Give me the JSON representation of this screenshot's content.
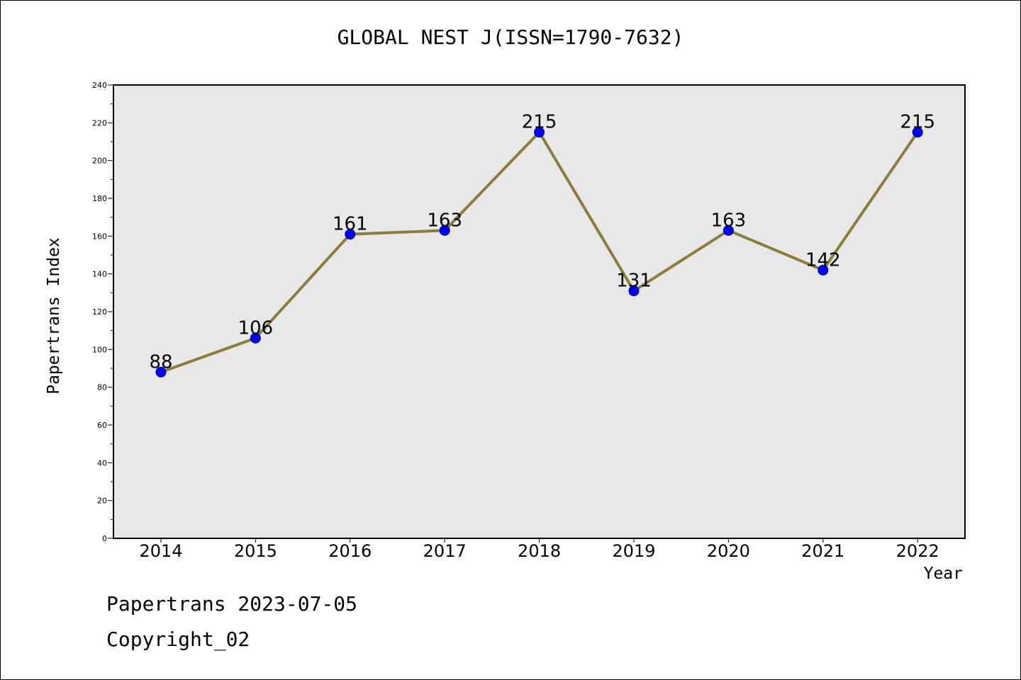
{
  "chart_data": {
    "type": "line",
    "title": "GLOBAL NEST J(ISSN=1790-7632)",
    "xlabel": "Year",
    "ylabel": "Papertrans Index",
    "x": [
      "2014",
      "2015",
      "2016",
      "2017",
      "2018",
      "2019",
      "2020",
      "2021",
      "2022"
    ],
    "series": [
      {
        "values": [
          88,
          106,
          161,
          163,
          215,
          131,
          163,
          142,
          215
        ]
      }
    ],
    "ylim": [
      0,
      240
    ],
    "yticks": [
      0,
      20,
      40,
      60,
      80,
      100,
      120,
      140,
      160,
      180,
      200,
      220,
      240
    ],
    "grid": false,
    "legend": "none",
    "colors": {
      "line": "#8B7D3A",
      "marker": "#0000FF",
      "plot_background": "#E8E8E8"
    }
  },
  "footer": {
    "date_text": "Papertrans 2023-07-05",
    "copyright_text": "Copyright_02"
  }
}
